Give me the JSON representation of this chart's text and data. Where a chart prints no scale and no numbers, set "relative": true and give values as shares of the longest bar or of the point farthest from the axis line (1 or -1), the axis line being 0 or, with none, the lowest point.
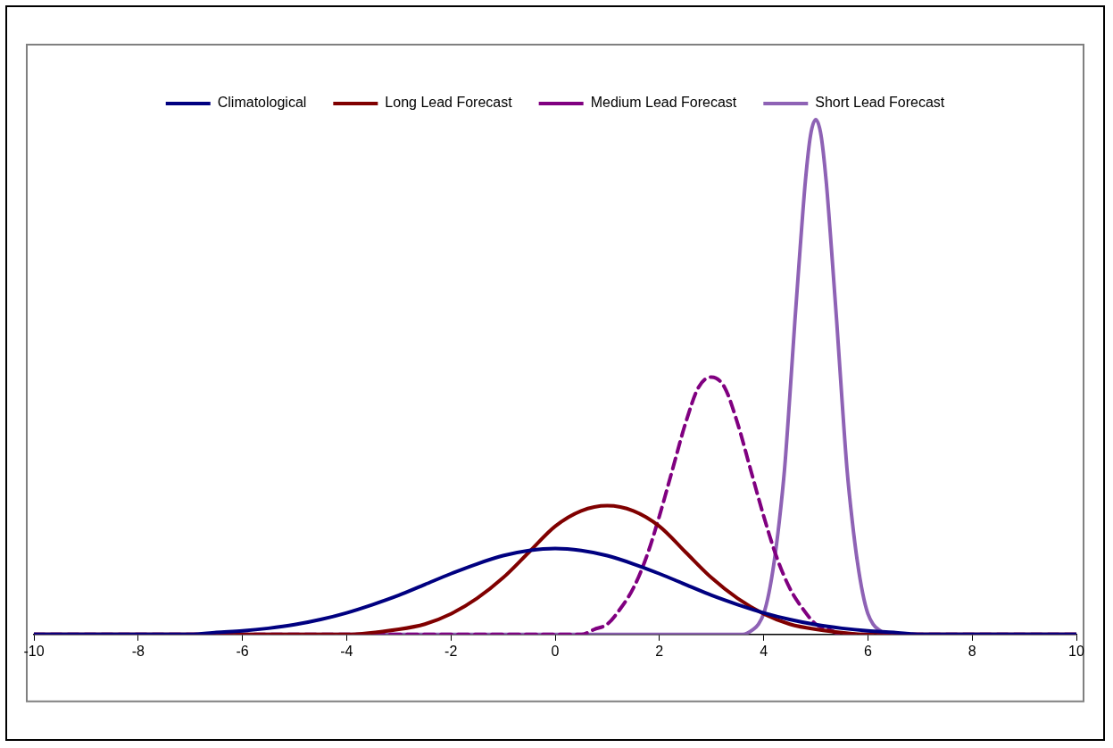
{
  "chart_data": {
    "type": "line",
    "relative": true,
    "legend": "top",
    "grid": false,
    "marker": "none",
    "tick_labels": "x",
    "xlim": [
      -10,
      10
    ],
    "xticks": [
      -10,
      -8,
      -6,
      -4,
      -2,
      0,
      2,
      4,
      6,
      8,
      10
    ],
    "series": [
      {
        "name": "Climatological",
        "color": "#000080",
        "line_style": "solid",
        "x": [
          -10,
          -9,
          -8,
          -7,
          -6.5,
          -6,
          -5.5,
          -5,
          -4.5,
          -4,
          -3.5,
          -3,
          -2.5,
          -2,
          -1.5,
          -1,
          -0.5,
          0,
          0.5,
          1,
          1.5,
          2,
          2.5,
          3,
          3.5,
          4,
          4.5,
          5,
          5.5,
          6,
          6.5,
          7,
          8,
          9,
          10
        ],
        "values": [
          0,
          0,
          0,
          0,
          0.004,
          0.007,
          0.012,
          0.019,
          0.029,
          0.042,
          0.058,
          0.076,
          0.097,
          0.118,
          0.137,
          0.153,
          0.163,
          0.167,
          0.163,
          0.153,
          0.137,
          0.118,
          0.097,
          0.076,
          0.058,
          0.042,
          0.029,
          0.019,
          0.012,
          0.007,
          0.004,
          0,
          0,
          0,
          0
        ]
      },
      {
        "name": "Long Lead Forecast",
        "color": "#800000",
        "line_style": "solid",
        "x": [
          -10,
          -5,
          -4,
          -3,
          -2.5,
          -2,
          -1.5,
          -1,
          -0.5,
          0,
          0.5,
          1,
          1.5,
          2,
          2.5,
          3,
          3.5,
          4,
          4.5,
          5,
          6,
          10
        ],
        "values": [
          0,
          0,
          0,
          0.01,
          0.02,
          0.04,
          0.07,
          0.11,
          0.16,
          0.21,
          0.24,
          0.25,
          0.24,
          0.21,
          0.16,
          0.11,
          0.07,
          0.04,
          0.02,
          0.01,
          0,
          0
        ]
      },
      {
        "name": "Medium Lead Forecast",
        "color": "#800080",
        "line_style": "dashed",
        "x": [
          -10,
          0,
          0.5,
          0.75,
          1,
          1.25,
          1.5,
          1.75,
          2,
          2.25,
          2.5,
          2.75,
          3,
          3.25,
          3.5,
          3.75,
          4,
          4.25,
          4.5,
          4.75,
          5,
          5.25,
          5.5,
          10
        ],
        "values": [
          0,
          0,
          0,
          0.01,
          0.02,
          0.05,
          0.09,
          0.15,
          0.23,
          0.32,
          0.41,
          0.48,
          0.5,
          0.48,
          0.41,
          0.32,
          0.23,
          0.15,
          0.09,
          0.05,
          0.02,
          0.01,
          0,
          0
        ]
      },
      {
        "name": "Short Lead Forecast",
        "color": "#8e62b5",
        "line_style": "solid",
        "x": [
          -10,
          3.6,
          3.8,
          3.9,
          4,
          4.1,
          4.2,
          4.3,
          4.4,
          4.5,
          4.6,
          4.7,
          4.8,
          4.9,
          5,
          5.1,
          5.2,
          5.3,
          5.4,
          5.5,
          5.6,
          5.7,
          5.8,
          5.9,
          6,
          6.1,
          6.2,
          6.4,
          10
        ],
        "values": [
          0,
          0,
          0.01,
          0.02,
          0.04,
          0.08,
          0.14,
          0.22,
          0.32,
          0.46,
          0.61,
          0.75,
          0.88,
          0.97,
          1,
          0.97,
          0.88,
          0.75,
          0.61,
          0.46,
          0.32,
          0.22,
          0.14,
          0.08,
          0.04,
          0.02,
          0.01,
          0,
          0
        ]
      }
    ]
  }
}
